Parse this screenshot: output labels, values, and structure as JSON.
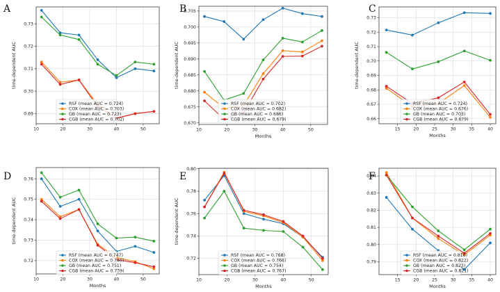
{
  "colors": {
    "RSF": "#1f77b4",
    "COX": "#ff7f0e",
    "GB": "#2ca02c",
    "CGB": "#d62728"
  },
  "chart_data": [
    {
      "letter": "A",
      "type": "line",
      "xlabel": "",
      "ylabel": "time-dependent AUC",
      "xlim": [
        10,
        56
      ],
      "ylim": [
        0.6855,
        0.7375
      ],
      "xticks": [
        10,
        20,
        30,
        40,
        50
      ],
      "yticks": [
        0.69,
        0.7,
        0.71,
        0.72,
        0.73
      ],
      "ytick_labels": [
        "0.69",
        "0.70",
        "0.71",
        "0.72",
        "0.73"
      ],
      "x": [
        12,
        19,
        26,
        33,
        40,
        47,
        54
      ],
      "series": [
        {
          "key": "RSF",
          "name": "RSF (mean AUC = 0.724)",
          "values": [
            0.736,
            0.726,
            0.725,
            0.714,
            0.706,
            0.71,
            0.709
          ]
        },
        {
          "key": "COX",
          "name": "COX (mean AUC = 0.703)",
          "values": [
            0.713,
            0.704,
            0.705,
            0.694,
            0.688,
            0.69,
            0.691
          ]
        },
        {
          "key": "GB",
          "name": "GB (mean AUC = 0.723)",
          "values": [
            0.733,
            0.725,
            0.723,
            0.712,
            0.707,
            0.713,
            0.712
          ]
        },
        {
          "key": "CGB",
          "name": "CGB (mean AUC = 0.702)",
          "values": [
            0.712,
            0.703,
            0.705,
            0.693,
            0.688,
            0.69,
            0.691
          ]
        }
      ]
    },
    {
      "letter": "B",
      "type": "line",
      "xlabel": "Months",
      "ylabel": "time-dependent AUC",
      "xlim": [
        10,
        56
      ],
      "ylim": [
        0.6695,
        0.7065
      ],
      "xticks": [
        10,
        20,
        30,
        40,
        50
      ],
      "yticks": [
        0.67,
        0.675,
        0.68,
        0.685,
        0.69,
        0.695,
        0.7,
        0.705
      ],
      "ytick_labels": [
        "0.670",
        "0.675",
        "0.680",
        "0.685",
        "0.690",
        "0.695",
        "0.700",
        "0.705"
      ],
      "x": [
        12,
        19,
        26,
        33,
        40,
        47,
        54
      ],
      "series": [
        {
          "key": "RSF",
          "name": "RSF (mean AUC = 0.702)",
          "values": [
            0.7033,
            0.7017,
            0.6962,
            0.7023,
            0.7059,
            0.7042,
            0.7033
          ]
        },
        {
          "key": "COX",
          "name": "COX (mean AUC = 0.682)",
          "values": [
            0.6796,
            0.6746,
            0.6755,
            0.6854,
            0.6926,
            0.6922,
            0.6957
          ]
        },
        {
          "key": "GB",
          "name": "GB (mean AUC = 0.686)",
          "values": [
            0.6861,
            0.6771,
            0.6792,
            0.6897,
            0.6965,
            0.6953,
            0.6989
          ]
        },
        {
          "key": "CGB",
          "name": "CGB (mean AUC = 0.679)",
          "values": [
            0.6769,
            0.6711,
            0.6732,
            0.6837,
            0.6908,
            0.6909,
            0.694
          ]
        }
      ]
    },
    {
      "letter": "C",
      "type": "line",
      "xlabel": "Months",
      "ylabel": "time-dependent AUC",
      "xlim": [
        10,
        41.5
      ],
      "ylim": [
        0.6565,
        0.7375
      ],
      "xticks": [
        15,
        20,
        25,
        30,
        35,
        40
      ],
      "yticks": [
        0.66,
        0.67,
        0.68,
        0.69,
        0.7,
        0.71,
        0.72,
        0.73
      ],
      "ytick_labels": [
        "0.66",
        "0.67",
        "0.68",
        "0.69",
        "0.70",
        "0.71",
        "0.72",
        "0.73"
      ],
      "x": [
        12,
        19,
        26,
        33,
        40
      ],
      "series": [
        {
          "key": "RSF",
          "name": "RSF (mean AUC = 0.724)",
          "values": [
            0.7215,
            0.718,
            0.7265,
            0.7335,
            0.733
          ]
        },
        {
          "key": "COX",
          "name": "COX (mean AUC = 0.676)",
          "values": [
            0.681,
            0.6685,
            0.6705,
            0.683,
            0.661
          ]
        },
        {
          "key": "GB",
          "name": "GB (mean AUC = 0.703)",
          "values": [
            0.706,
            0.6945,
            0.6995,
            0.707,
            0.7005
          ]
        },
        {
          "key": "CGB",
          "name": "CGB (mean AUC = 0.679)",
          "values": [
            0.6825,
            0.6705,
            0.6745,
            0.6855,
            0.663
          ]
        }
      ]
    },
    {
      "letter": "D",
      "type": "line",
      "xlabel": "Months",
      "ylabel": "time-dependent AUC",
      "xlim": [
        10,
        56
      ],
      "ylim": [
        0.7135,
        0.7655
      ],
      "xticks": [
        10,
        20,
        30,
        40,
        50
      ],
      "yticks": [
        0.72,
        0.73,
        0.74,
        0.75,
        0.76
      ],
      "ytick_labels": [
        "0.72",
        "0.73",
        "0.74",
        "0.75",
        "0.76"
      ],
      "x": [
        12,
        19,
        26,
        33,
        40,
        47,
        54
      ],
      "series": [
        {
          "key": "RSF",
          "name": "RSF (mean AUC = 0.747)",
          "values": [
            0.76,
            0.7465,
            0.75,
            0.7345,
            0.7245,
            0.727,
            0.724
          ]
        },
        {
          "key": "COX",
          "name": "COX (mean AUC = 0.740)",
          "values": [
            0.75,
            0.7415,
            0.745,
            0.728,
            0.7215,
            0.7195,
            0.716
          ]
        },
        {
          "key": "GB",
          "name": "GB (mean AUC = 0.751)",
          "values": [
            0.763,
            0.751,
            0.7545,
            0.738,
            0.731,
            0.7315,
            0.7295
          ]
        },
        {
          "key": "CGB",
          "name": "CGB (mean AUC = 0.739)",
          "values": [
            0.749,
            0.7405,
            0.745,
            0.7275,
            0.7205,
            0.719,
            0.717
          ]
        }
      ]
    },
    {
      "letter": "E",
      "type": "line",
      "xlabel": "Months",
      "ylabel": "time-dependent AUC",
      "xlim": [
        10,
        56
      ],
      "ylim": [
        0.7055,
        0.8005
      ],
      "xticks": [
        10,
        20,
        30,
        40,
        50
      ],
      "yticks": [
        0.72,
        0.74,
        0.76,
        0.78,
        0.8
      ],
      "ytick_labels": [
        "0.72",
        "0.74",
        "0.76",
        "0.78",
        "0.80"
      ],
      "x": [
        12,
        19,
        26,
        33,
        40,
        47,
        54
      ],
      "series": [
        {
          "key": "RSF",
          "name": "RSF (mean AUC = 0.768)",
          "values": [
            0.772,
            0.794,
            0.76,
            0.755,
            0.751,
            0.739,
            0.721
          ]
        },
        {
          "key": "COX",
          "name": "COX (mean AUC = 0.766)",
          "values": [
            0.766,
            0.797,
            0.762,
            0.758,
            0.752,
            0.739,
            0.718
          ]
        },
        {
          "key": "GB",
          "name": "GB (mean AUC = 0.754)",
          "values": [
            0.756,
            0.78,
            0.747,
            0.745,
            0.744,
            0.73,
            0.71
          ]
        },
        {
          "key": "CGB",
          "name": "CGB (mean AUC = 0.767)",
          "values": [
            0.766,
            0.796,
            0.763,
            0.759,
            0.753,
            0.74,
            0.72
          ]
        }
      ]
    },
    {
      "letter": "F",
      "type": "line",
      "xlabel": "Months",
      "ylabel": "",
      "xlim": [
        10,
        41.5
      ],
      "ylim": [
        0.7825,
        0.8445
      ],
      "xticks": [
        15,
        20,
        25,
        30,
        35,
        40
      ],
      "yticks": [
        0.79,
        0.8,
        0.81,
        0.82,
        0.83,
        0.84
      ],
      "ytick_labels": [
        "0.79",
        "0.80",
        "0.81",
        "0.82",
        "0.83",
        "0.84"
      ],
      "x": [
        12,
        19,
        26,
        33,
        40
      ],
      "series": [
        {
          "key": "RSF",
          "name": "RSF (mean AUC = 0.810)",
          "values": [
            0.8275,
            0.809,
            0.7965,
            0.7855,
            0.801
          ]
        },
        {
          "key": "COX",
          "name": "COX (mean AUC = 0.822)",
          "values": [
            0.842,
            0.8155,
            0.8035,
            0.794,
            0.8055
          ]
        },
        {
          "key": "GB",
          "name": "GB (mean AUC = 0.823)",
          "values": [
            0.8405,
            0.822,
            0.808,
            0.797,
            0.809
          ]
        },
        {
          "key": "CGB",
          "name": "CGB (mean AUC = 0.821)",
          "values": [
            0.8405,
            0.8155,
            0.805,
            0.795,
            0.8065
          ]
        }
      ]
    }
  ]
}
